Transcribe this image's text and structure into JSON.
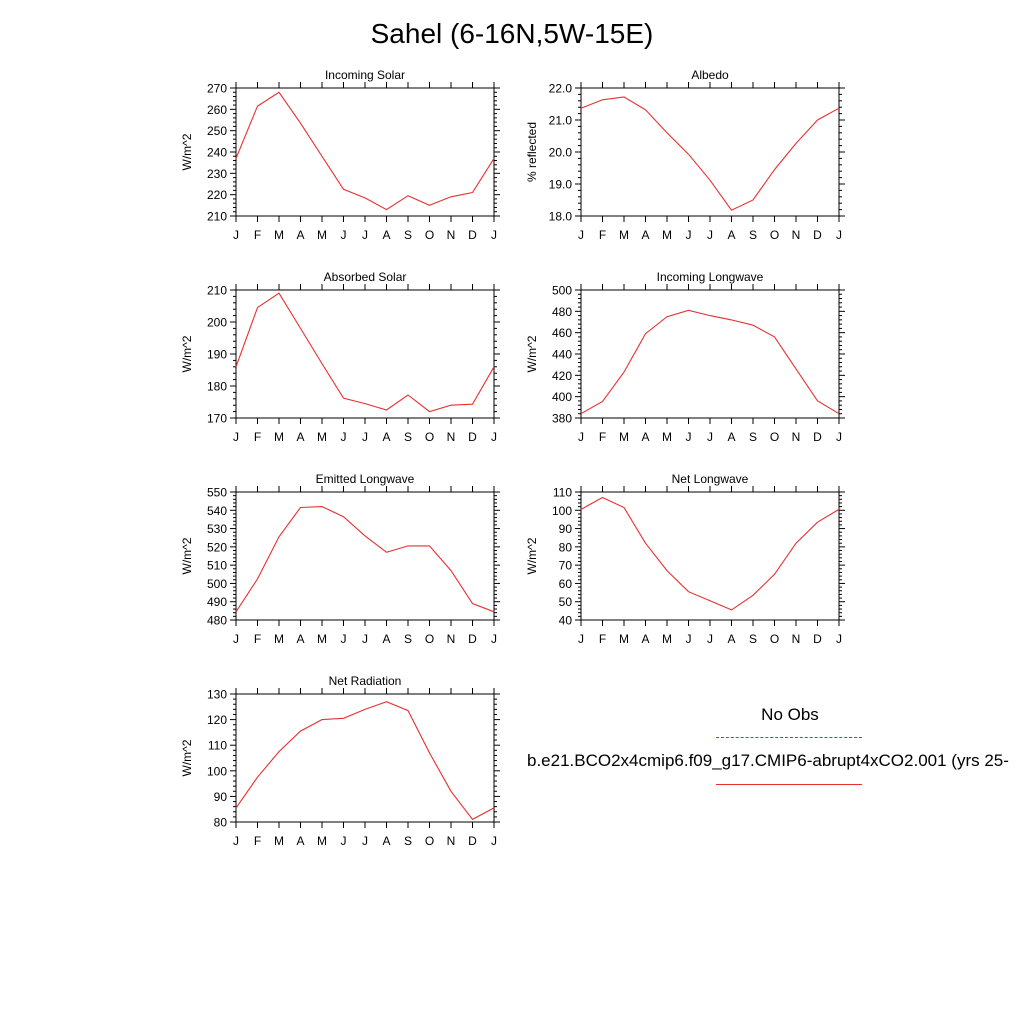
{
  "title": "Sahel (6-16N,5W-15E)",
  "legend": {
    "title": "No Obs",
    "series_label": "b.e21.BCO2x4cmip6.f09_g17.CMIP6-abrupt4xCO2.001 (yrs 25-",
    "obs_color": "#4a4af0",
    "model_color": "#e83030"
  },
  "chart_data": [
    {
      "type": "line",
      "title": "Incoming Solar",
      "ylabel": "W/m^2",
      "categories": [
        "J",
        "F",
        "M",
        "A",
        "M",
        "J",
        "J",
        "A",
        "S",
        "O",
        "N",
        "D",
        "J"
      ],
      "ylim": [
        210,
        270
      ],
      "yticks": [
        "210",
        "220",
        "230",
        "240",
        "250",
        "260",
        "270"
      ],
      "values": [
        237,
        261.5,
        268,
        253.5,
        238,
        222.5,
        218.5,
        213,
        219.5,
        215,
        219,
        221,
        237
      ],
      "color": "#e83030"
    },
    {
      "type": "line",
      "title": "Albedo",
      "ylabel": "% reflected",
      "categories": [
        "J",
        "F",
        "M",
        "A",
        "M",
        "J",
        "J",
        "A",
        "S",
        "O",
        "N",
        "D",
        "J"
      ],
      "ylim": [
        18.0,
        22.0
      ],
      "yticks": [
        "18.0",
        "19.0",
        "20.0",
        "21.0",
        "22.0"
      ],
      "values": [
        21.37,
        21.63,
        21.72,
        21.32,
        20.6,
        19.93,
        19.12,
        18.18,
        18.5,
        19.45,
        20.27,
        21.0,
        21.37
      ],
      "color": "#e83030"
    },
    {
      "type": "line",
      "title": "Absorbed Solar",
      "ylabel": "W/m^2",
      "categories": [
        "J",
        "F",
        "M",
        "A",
        "M",
        "J",
        "J",
        "A",
        "S",
        "O",
        "N",
        "D",
        "J"
      ],
      "ylim": [
        170,
        210
      ],
      "yticks": [
        "170",
        "180",
        "190",
        "200",
        "210"
      ],
      "values": [
        186,
        204.5,
        209,
        198,
        187,
        176.2,
        174.5,
        172.5,
        177.2,
        172,
        174,
        174.3,
        186
      ],
      "color": "#e83030"
    },
    {
      "type": "line",
      "title": "Incoming Longwave",
      "ylabel": "W/m^2",
      "categories": [
        "J",
        "F",
        "M",
        "A",
        "M",
        "J",
        "J",
        "A",
        "S",
        "O",
        "N",
        "D",
        "J"
      ],
      "ylim": [
        380,
        500
      ],
      "yticks": [
        "380",
        "400",
        "420",
        "440",
        "460",
        "480",
        "500"
      ],
      "values": [
        384,
        395.5,
        423,
        459,
        475,
        481,
        476,
        472,
        467,
        456,
        426,
        396,
        384
      ],
      "color": "#e83030"
    },
    {
      "type": "line",
      "title": "Emitted Longwave",
      "ylabel": "W/m^2",
      "categories": [
        "J",
        "F",
        "M",
        "A",
        "M",
        "J",
        "J",
        "A",
        "S",
        "O",
        "N",
        "D",
        "J"
      ],
      "ylim": [
        480,
        550
      ],
      "yticks": [
        "480",
        "490",
        "500",
        "510",
        "520",
        "530",
        "540",
        "550"
      ],
      "values": [
        484.5,
        502.5,
        525.5,
        541.5,
        542,
        536.5,
        526,
        517,
        520.5,
        520.5,
        507,
        489,
        484.5
      ],
      "color": "#e83030"
    },
    {
      "type": "line",
      "title": "Net Longwave",
      "ylabel": "W/m^2",
      "categories": [
        "J",
        "F",
        "M",
        "A",
        "M",
        "J",
        "J",
        "A",
        "S",
        "O",
        "N",
        "D",
        "J"
      ],
      "ylim": [
        40,
        110
      ],
      "yticks": [
        "40",
        "50",
        "60",
        "70",
        "80",
        "90",
        "100",
        "110"
      ],
      "values": [
        100.5,
        107,
        101.5,
        82,
        67,
        55.5,
        50.5,
        45.5,
        53.5,
        65,
        82,
        93.5,
        100.5
      ],
      "color": "#e83030"
    },
    {
      "type": "line",
      "title": "Net Radiation",
      "ylabel": "W/m^2",
      "categories": [
        "J",
        "F",
        "M",
        "A",
        "M",
        "J",
        "J",
        "A",
        "S",
        "O",
        "N",
        "D",
        "J"
      ],
      "ylim": [
        80,
        130
      ],
      "yticks": [
        "80",
        "90",
        "100",
        "110",
        "120",
        "130"
      ],
      "values": [
        85.5,
        97.5,
        107.5,
        115.5,
        120,
        120.5,
        124,
        127,
        123.5,
        107,
        92,
        81,
        85.5
      ],
      "color": "#e83030"
    }
  ]
}
